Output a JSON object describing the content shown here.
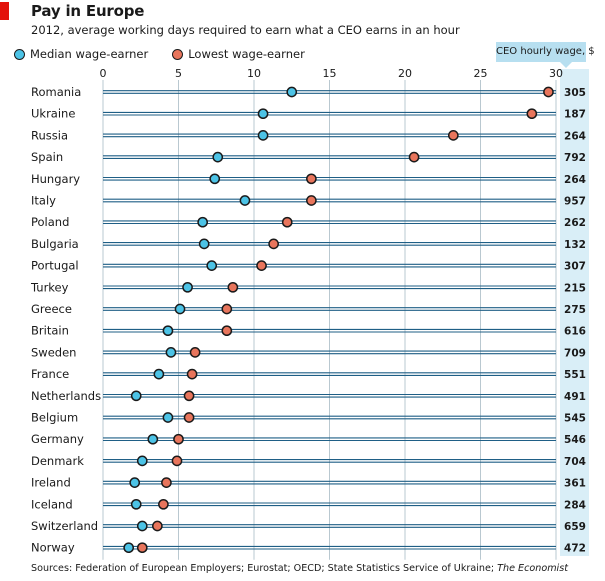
{
  "title": "Pay in Europe",
  "subtitle": "2012, average working days required to earn what a CEO earns in an hour",
  "legend": {
    "median": "Median wage-earner",
    "lowest": "Lowest wage-earner"
  },
  "ceo_header": "CEO hourly wage, $",
  "source": {
    "text": "Sources: Federation of European Employers; Eurostat; OECD; State Statistics Service of Ukraine; ",
    "italic": "The Economist"
  },
  "colors": {
    "median": "#4cc3e6",
    "lowest": "#e8755c",
    "row_line": "#1f5f86",
    "ceo_bg": "#d9eef7",
    "accent": "#e3120b"
  },
  "chart_data": {
    "type": "dot",
    "title": "Pay in Europe",
    "subtitle": "2012, average working days required to earn what a CEO earns in an hour",
    "xlim": [
      0,
      30
    ],
    "xticks": [
      0,
      5,
      10,
      15,
      20,
      25,
      30
    ],
    "grid": true,
    "categories": [
      "Romania",
      "Ukraine",
      "Russia",
      "Spain",
      "Hungary",
      "Italy",
      "Poland",
      "Bulgaria",
      "Portugal",
      "Turkey",
      "Greece",
      "Britain",
      "Sweden",
      "France",
      "Netherlands",
      "Belgium",
      "Germany",
      "Denmark",
      "Ireland",
      "Iceland",
      "Switzerland",
      "Norway"
    ],
    "series": [
      {
        "name": "Median wage-earner",
        "values": [
          12.5,
          10.6,
          10.6,
          7.6,
          7.4,
          9.4,
          6.6,
          6.7,
          7.2,
          5.6,
          5.1,
          4.3,
          4.5,
          3.7,
          2.2,
          4.3,
          3.3,
          2.6,
          2.1,
          2.2,
          2.6,
          1.7
        ]
      },
      {
        "name": "Lowest wage-earner",
        "values": [
          29.5,
          28.4,
          23.2,
          20.6,
          13.8,
          13.8,
          12.2,
          11.3,
          10.5,
          8.6,
          8.2,
          8.2,
          6.1,
          5.9,
          5.7,
          5.7,
          5.0,
          4.9,
          4.2,
          4.0,
          3.6,
          2.6
        ]
      }
    ],
    "ceo_hourly_wage": [
      "305",
      "187",
      "264",
      "792",
      "264",
      "957",
      "262",
      "132",
      "307",
      "215",
      "275",
      "616",
      "709",
      "551",
      "491",
      "545",
      "546",
      "704",
      "361",
      "284",
      "659",
      "472"
    ]
  }
}
